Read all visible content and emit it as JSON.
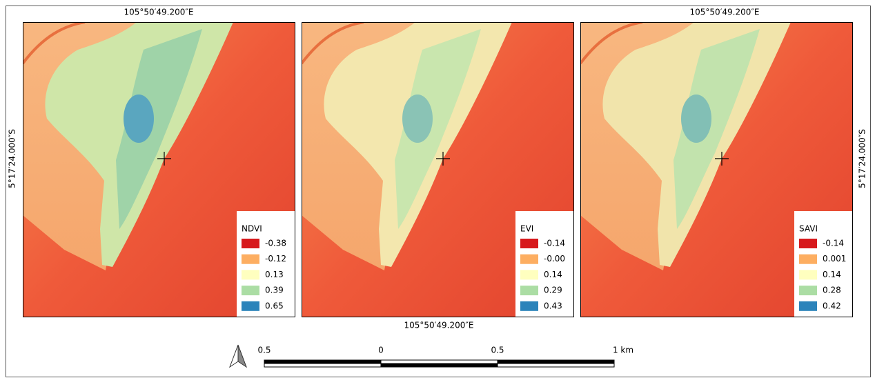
{
  "coordinate_labels": {
    "top_left": "105°50′49.200″E",
    "top_right": "105°50′49.200″E",
    "bottom_center": "105°50′49.200″E",
    "left": "5°17′24.000″S",
    "right": "5°17′24.000″S"
  },
  "maps": [
    {
      "legend": {
        "title": "NDVI",
        "entries": [
          {
            "label": "-0.38",
            "color": "#d7191c"
          },
          {
            "label": "-0.12",
            "color": "#fdae61"
          },
          {
            "label": "0.13",
            "color": "#ffffbf"
          },
          {
            "label": "0.39",
            "color": "#abdda4"
          },
          {
            "label": "0.65",
            "color": "#2b83ba"
          }
        ]
      }
    },
    {
      "legend": {
        "title": "EVI",
        "entries": [
          {
            "label": "-0.14",
            "color": "#d7191c"
          },
          {
            "label": "-0.00",
            "color": "#fdae61"
          },
          {
            "label": "0.14",
            "color": "#ffffbf"
          },
          {
            "label": "0.29",
            "color": "#abdda4"
          },
          {
            "label": "0.43",
            "color": "#2b83ba"
          }
        ]
      }
    },
    {
      "legend": {
        "title": "SAVI",
        "entries": [
          {
            "label": "-0.14",
            "color": "#d7191c"
          },
          {
            "label": "0.001",
            "color": "#fdae61"
          },
          {
            "label": "0.14",
            "color": "#ffffbf"
          },
          {
            "label": "0.28",
            "color": "#abdda4"
          },
          {
            "label": "0.42",
            "color": "#2b83ba"
          }
        ]
      }
    }
  ],
  "scale_bar": {
    "labels": [
      "0.5",
      "0",
      "0.5",
      "1 km"
    ]
  }
}
